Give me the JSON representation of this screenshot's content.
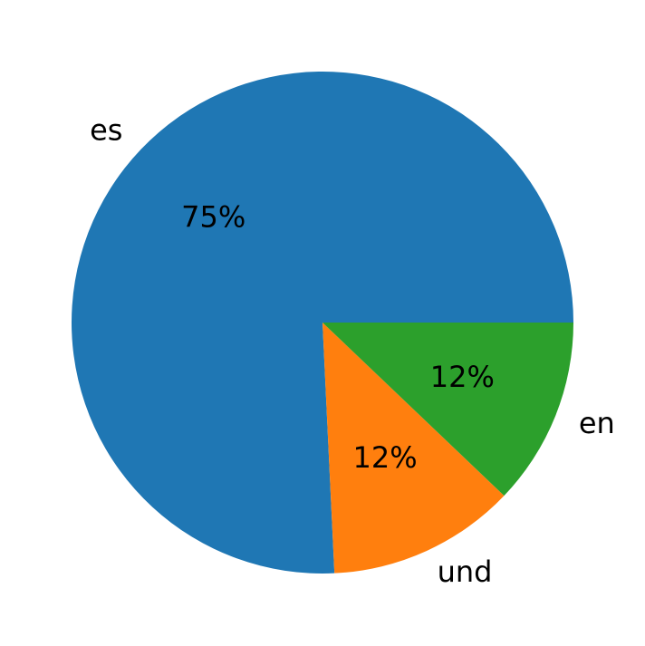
{
  "chart_data": {
    "type": "pie",
    "categories": [
      "es",
      "und",
      "en"
    ],
    "values": [
      75,
      12,
      12
    ],
    "value_labels": [
      "75%",
      "12%",
      "12%"
    ],
    "colors": [
      "#1f77b4",
      "#ff7f0e",
      "#2ca02c"
    ]
  }
}
